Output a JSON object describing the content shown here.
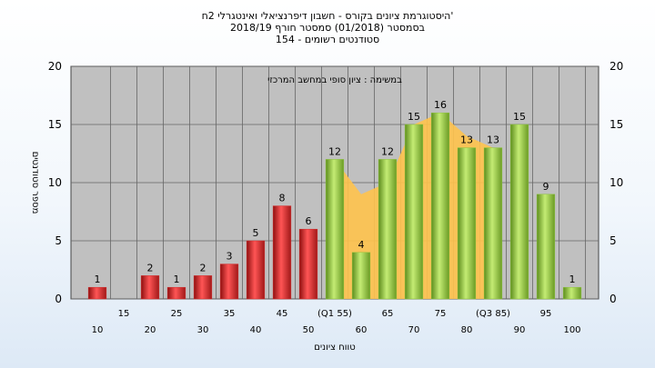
{
  "chart_data": {
    "type": "bar",
    "title_lines": [
      "'היסטוגרמת ציונים בקורס - חשבון דיפרנציאלי ואינטגרלי 2ח",
      "בסמסטר  (01/2018)  סמסטר חורף 2018/19",
      "סטודנטים רשומים - 154"
    ],
    "annotation": "במשימה : ציון סופי במחשב המרכזי",
    "xlabel": "טווח ציונים",
    "ylabel": "מספר סטודנטים",
    "ylim": [
      0,
      20
    ],
    "yticks": [
      "0",
      "5",
      "10",
      "15",
      "20"
    ],
    "grid": true,
    "xticks_lower": [
      "10",
      "20",
      "30",
      "40",
      "50",
      "60",
      "70",
      "80",
      "90",
      "100"
    ],
    "xticks_upper": [
      "15",
      "25",
      "35",
      "45",
      "(Q1 55)",
      "65",
      "75",
      "(Q3 85)",
      "95"
    ],
    "categories": [
      "10",
      "15",
      "20",
      "25",
      "30",
      "35",
      "40",
      "45",
      "50",
      "55",
      "60",
      "65",
      "70",
      "75",
      "80",
      "85",
      "90",
      "95",
      "100"
    ],
    "values": [
      1,
      0,
      2,
      1,
      2,
      3,
      5,
      8,
      6,
      12,
      4,
      12,
      15,
      16,
      13,
      13,
      15,
      9,
      1
    ],
    "data_labels": [
      "1",
      "",
      "2",
      "1",
      "2",
      "3",
      "5",
      "8",
      "6",
      "12",
      "4",
      "12",
      "15",
      "16",
      "13",
      "13",
      "15",
      "9",
      "1"
    ],
    "bar_colors": [
      "#d42b2b",
      "#d42b2b",
      "#d42b2b",
      "#d42b2b",
      "#d42b2b",
      "#d42b2b",
      "#d42b2b",
      "#d42b2b",
      "#d42b2b",
      "#8cc43c",
      "#8cc43c",
      "#8cc43c",
      "#8cc43c",
      "#8cc43c",
      "#8cc43c",
      "#8cc43c",
      "#8cc43c",
      "#8cc43c",
      "#8cc43c"
    ],
    "area_series": {
      "x": [
        "55",
        "60",
        "65",
        "70",
        "75",
        "80",
        "85"
      ],
      "values": [
        12,
        9,
        10,
        15,
        16,
        14,
        13
      ],
      "color": "#ffc34d"
    },
    "background_color": "#c0c0c0"
  }
}
